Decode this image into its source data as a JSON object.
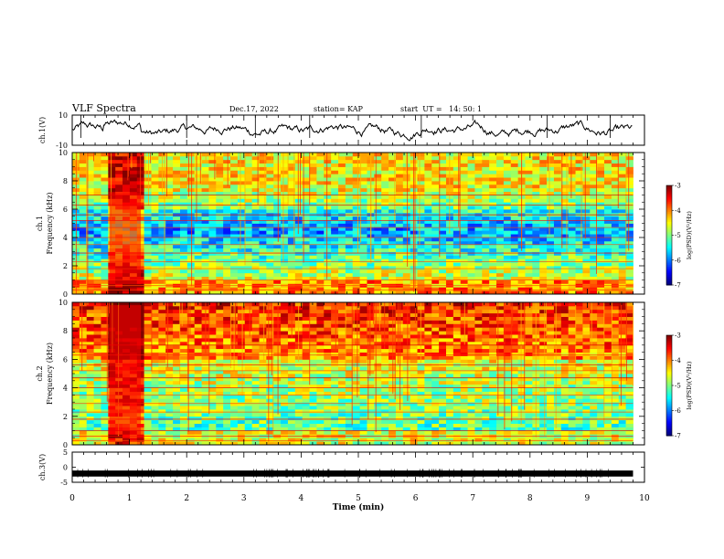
{
  "header": {
    "title": "VLF Spectra",
    "date": "Dec.17, 2022",
    "station": "station= KAP",
    "start": "start  UT =   14: 50: 1"
  },
  "chart_data": [
    {
      "type": "line",
      "ylabel": "ch.1(V)",
      "ylim": [
        -10,
        10
      ],
      "yticks": [
        "10",
        "-10"
      ],
      "xlim": [
        0,
        10
      ]
    },
    {
      "type": "heatmap",
      "ylabel": "ch.1\nFrequency (kHz)",
      "ylim": [
        0,
        10
      ],
      "yticks": [
        "0",
        "2",
        "4",
        "6",
        "8",
        "10"
      ],
      "xlim": [
        0,
        10
      ],
      "data_x_end": 9.8,
      "colorbar": {
        "label": "log(PSD)(V²/Hz)",
        "range": [
          -7,
          -3
        ],
        "ticks": [
          "-3",
          "-4",
          "-5",
          "-6",
          "-7"
        ]
      }
    },
    {
      "type": "heatmap",
      "ylabel": "ch.2\nFrequency (kHz)",
      "ylim": [
        0,
        10
      ],
      "yticks": [
        "0",
        "2",
        "4",
        "6",
        "8",
        "10"
      ],
      "xlim": [
        0,
        10
      ],
      "data_x_end": 9.8,
      "colorbar": {
        "label": "log(PSD)(V²/Hz)",
        "range": [
          -7,
          -3
        ],
        "ticks": [
          "-3",
          "-4",
          "-5",
          "-6",
          "-7"
        ]
      }
    },
    {
      "type": "line",
      "ylabel": "ch.3(V)",
      "ylim": [
        -5,
        5
      ],
      "yticks": [
        "5",
        "0",
        "-5"
      ],
      "xlim": [
        0,
        10
      ],
      "xlabel": "Time (min)",
      "xticks": [
        "0",
        "1",
        "2",
        "3",
        "4",
        "5",
        "6",
        "7",
        "8",
        "9",
        "10"
      ]
    }
  ]
}
